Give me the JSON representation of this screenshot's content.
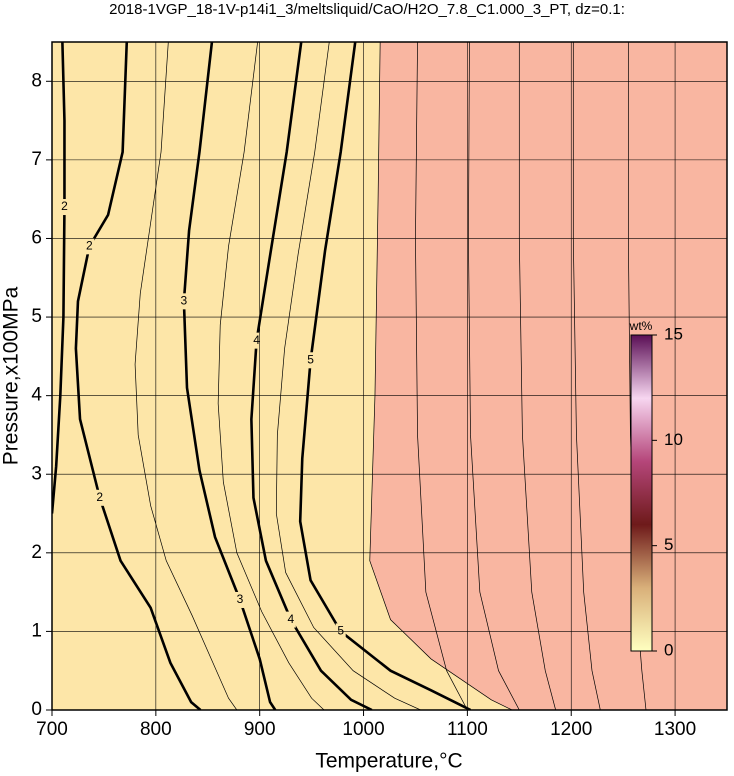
{
  "chart_data": {
    "type": "contour",
    "title": "2018-1VGP_18-1V-p14i1_3/meltsliquid/CaO/H2O_7.8_C1.000_3_PT, dz=0.1:",
    "x_label": "Temperature,°C",
    "y_label": "Pressure,x100MPa",
    "xlim": [
      700,
      1350
    ],
    "ylim": [
      0,
      8.5
    ],
    "xticks": [
      700,
      800,
      900,
      1000,
      1100,
      1200,
      1300
    ],
    "yticks": [
      0,
      1,
      2,
      3,
      4,
      5,
      6,
      7,
      8
    ],
    "grid": true,
    "fill_below_color": "#fde6a8",
    "fill_above_color": "#f9b6a1",
    "contours": [
      {
        "level": 2,
        "labeled": true,
        "x": [
          710,
          712,
          712,
          711,
          708,
          704,
          700
        ],
        "y": [
          8.5,
          7.5,
          6.4,
          5.0,
          4.0,
          3.1,
          2.5
        ]
      },
      {
        "level": 2,
        "labeled": true,
        "x": [
          772,
          768,
          754,
          736,
          725,
          723,
          727,
          746,
          766,
          795,
          814,
          834,
          843
        ],
        "y": [
          8.5,
          7.1,
          6.3,
          5.9,
          5.2,
          4.6,
          3.7,
          2.7,
          1.9,
          1.3,
          0.6,
          0.1,
          0
        ]
      },
      {
        "level": 2.5,
        "labeled": false,
        "x": [
          812,
          805,
          795,
          785,
          780,
          783,
          795,
          810,
          835,
          855,
          870,
          878
        ],
        "y": [
          8.5,
          7.1,
          6.2,
          5.3,
          4.4,
          3.5,
          2.6,
          1.9,
          1.2,
          0.6,
          0.15,
          0
        ]
      },
      {
        "level": 3,
        "labeled": true,
        "x": [
          854,
          842,
          832,
          827,
          830,
          842,
          857,
          881,
          900,
          910,
          915
        ],
        "y": [
          8.5,
          7.1,
          6.1,
          5.2,
          4.1,
          3.05,
          2.2,
          1.4,
          0.65,
          0.1,
          0
        ]
      },
      {
        "level": 3.5,
        "labeled": false,
        "x": [
          898,
          885,
          870,
          862,
          860,
          865,
          878,
          902,
          928,
          950,
          962
        ],
        "y": [
          8.5,
          7.1,
          5.9,
          4.9,
          3.9,
          2.9,
          2.0,
          1.25,
          0.6,
          0.15,
          0
        ]
      },
      {
        "level": 4,
        "labeled": true,
        "x": [
          940,
          926,
          909,
          897,
          892,
          894,
          906,
          930,
          959,
          988,
          1008
        ],
        "y": [
          8.5,
          7.1,
          5.7,
          4.7,
          3.7,
          2.7,
          1.9,
          1.15,
          0.5,
          0.13,
          0
        ]
      },
      {
        "level": 4.5,
        "labeled": false,
        "x": [
          967,
          953,
          937,
          924,
          917,
          916,
          925,
          952,
          990,
          1030,
          1055
        ],
        "y": [
          8.5,
          7.1,
          5.8,
          4.6,
          3.5,
          2.5,
          1.75,
          1.05,
          0.5,
          0.15,
          0
        ]
      },
      {
        "level": 5,
        "labeled": true,
        "x": [
          992,
          978,
          963,
          949,
          941,
          939,
          949,
          978,
          1026,
          1065,
          1094,
          1103
        ],
        "y": [
          8.5,
          7.1,
          5.85,
          4.45,
          3.2,
          2.4,
          1.65,
          1.0,
          0.5,
          0.25,
          0.06,
          0
        ]
      },
      {
        "level": 5.5,
        "labeled": false,
        "x": [
          1016,
          1014,
          1011,
          1006,
          1026,
          1065,
          1123,
          1143
        ],
        "y": [
          8.5,
          6.5,
          4.0,
          1.9,
          1.15,
          0.65,
          0.13,
          0
        ]
      },
      {
        "level": 6,
        "labeled": false,
        "x": [
          1052,
          1050,
          1052,
          1060,
          1080,
          1100
        ],
        "y": [
          8.5,
          6.0,
          3.5,
          1.5,
          0.5,
          0
        ]
      },
      {
        "level": 6.5,
        "labeled": false,
        "x": [
          1102,
          1101,
          1103,
          1112,
          1130,
          1150
        ],
        "y": [
          8.5,
          6.0,
          3.5,
          1.5,
          0.5,
          0
        ]
      },
      {
        "level": 7,
        "labeled": false,
        "x": [
          1150,
          1150,
          1153,
          1162,
          1175,
          1185
        ],
        "y": [
          8.5,
          6.0,
          3.5,
          1.5,
          0.5,
          0
        ]
      },
      {
        "level": 7.5,
        "labeled": false,
        "x": [
          1202,
          1202,
          1205,
          1212,
          1220,
          1228
        ],
        "y": [
          8.5,
          6.0,
          3.5,
          1.5,
          0.5,
          0
        ]
      },
      {
        "level": 8,
        "labeled": false,
        "x": [
          1255,
          1255,
          1257,
          1262,
          1268,
          1272
        ],
        "y": [
          8.5,
          6.0,
          3.5,
          1.5,
          0.5,
          0
        ]
      }
    ],
    "colorbar": {
      "label": "wt%",
      "lim": [
        0,
        15
      ],
      "ticks": [
        0,
        5,
        10,
        15
      ],
      "colors": [
        "#ffffc0",
        "#d9b07a",
        "#6e1a1a",
        "#b5467a",
        "#f7d6f0",
        "#5a0e55"
      ]
    }
  }
}
